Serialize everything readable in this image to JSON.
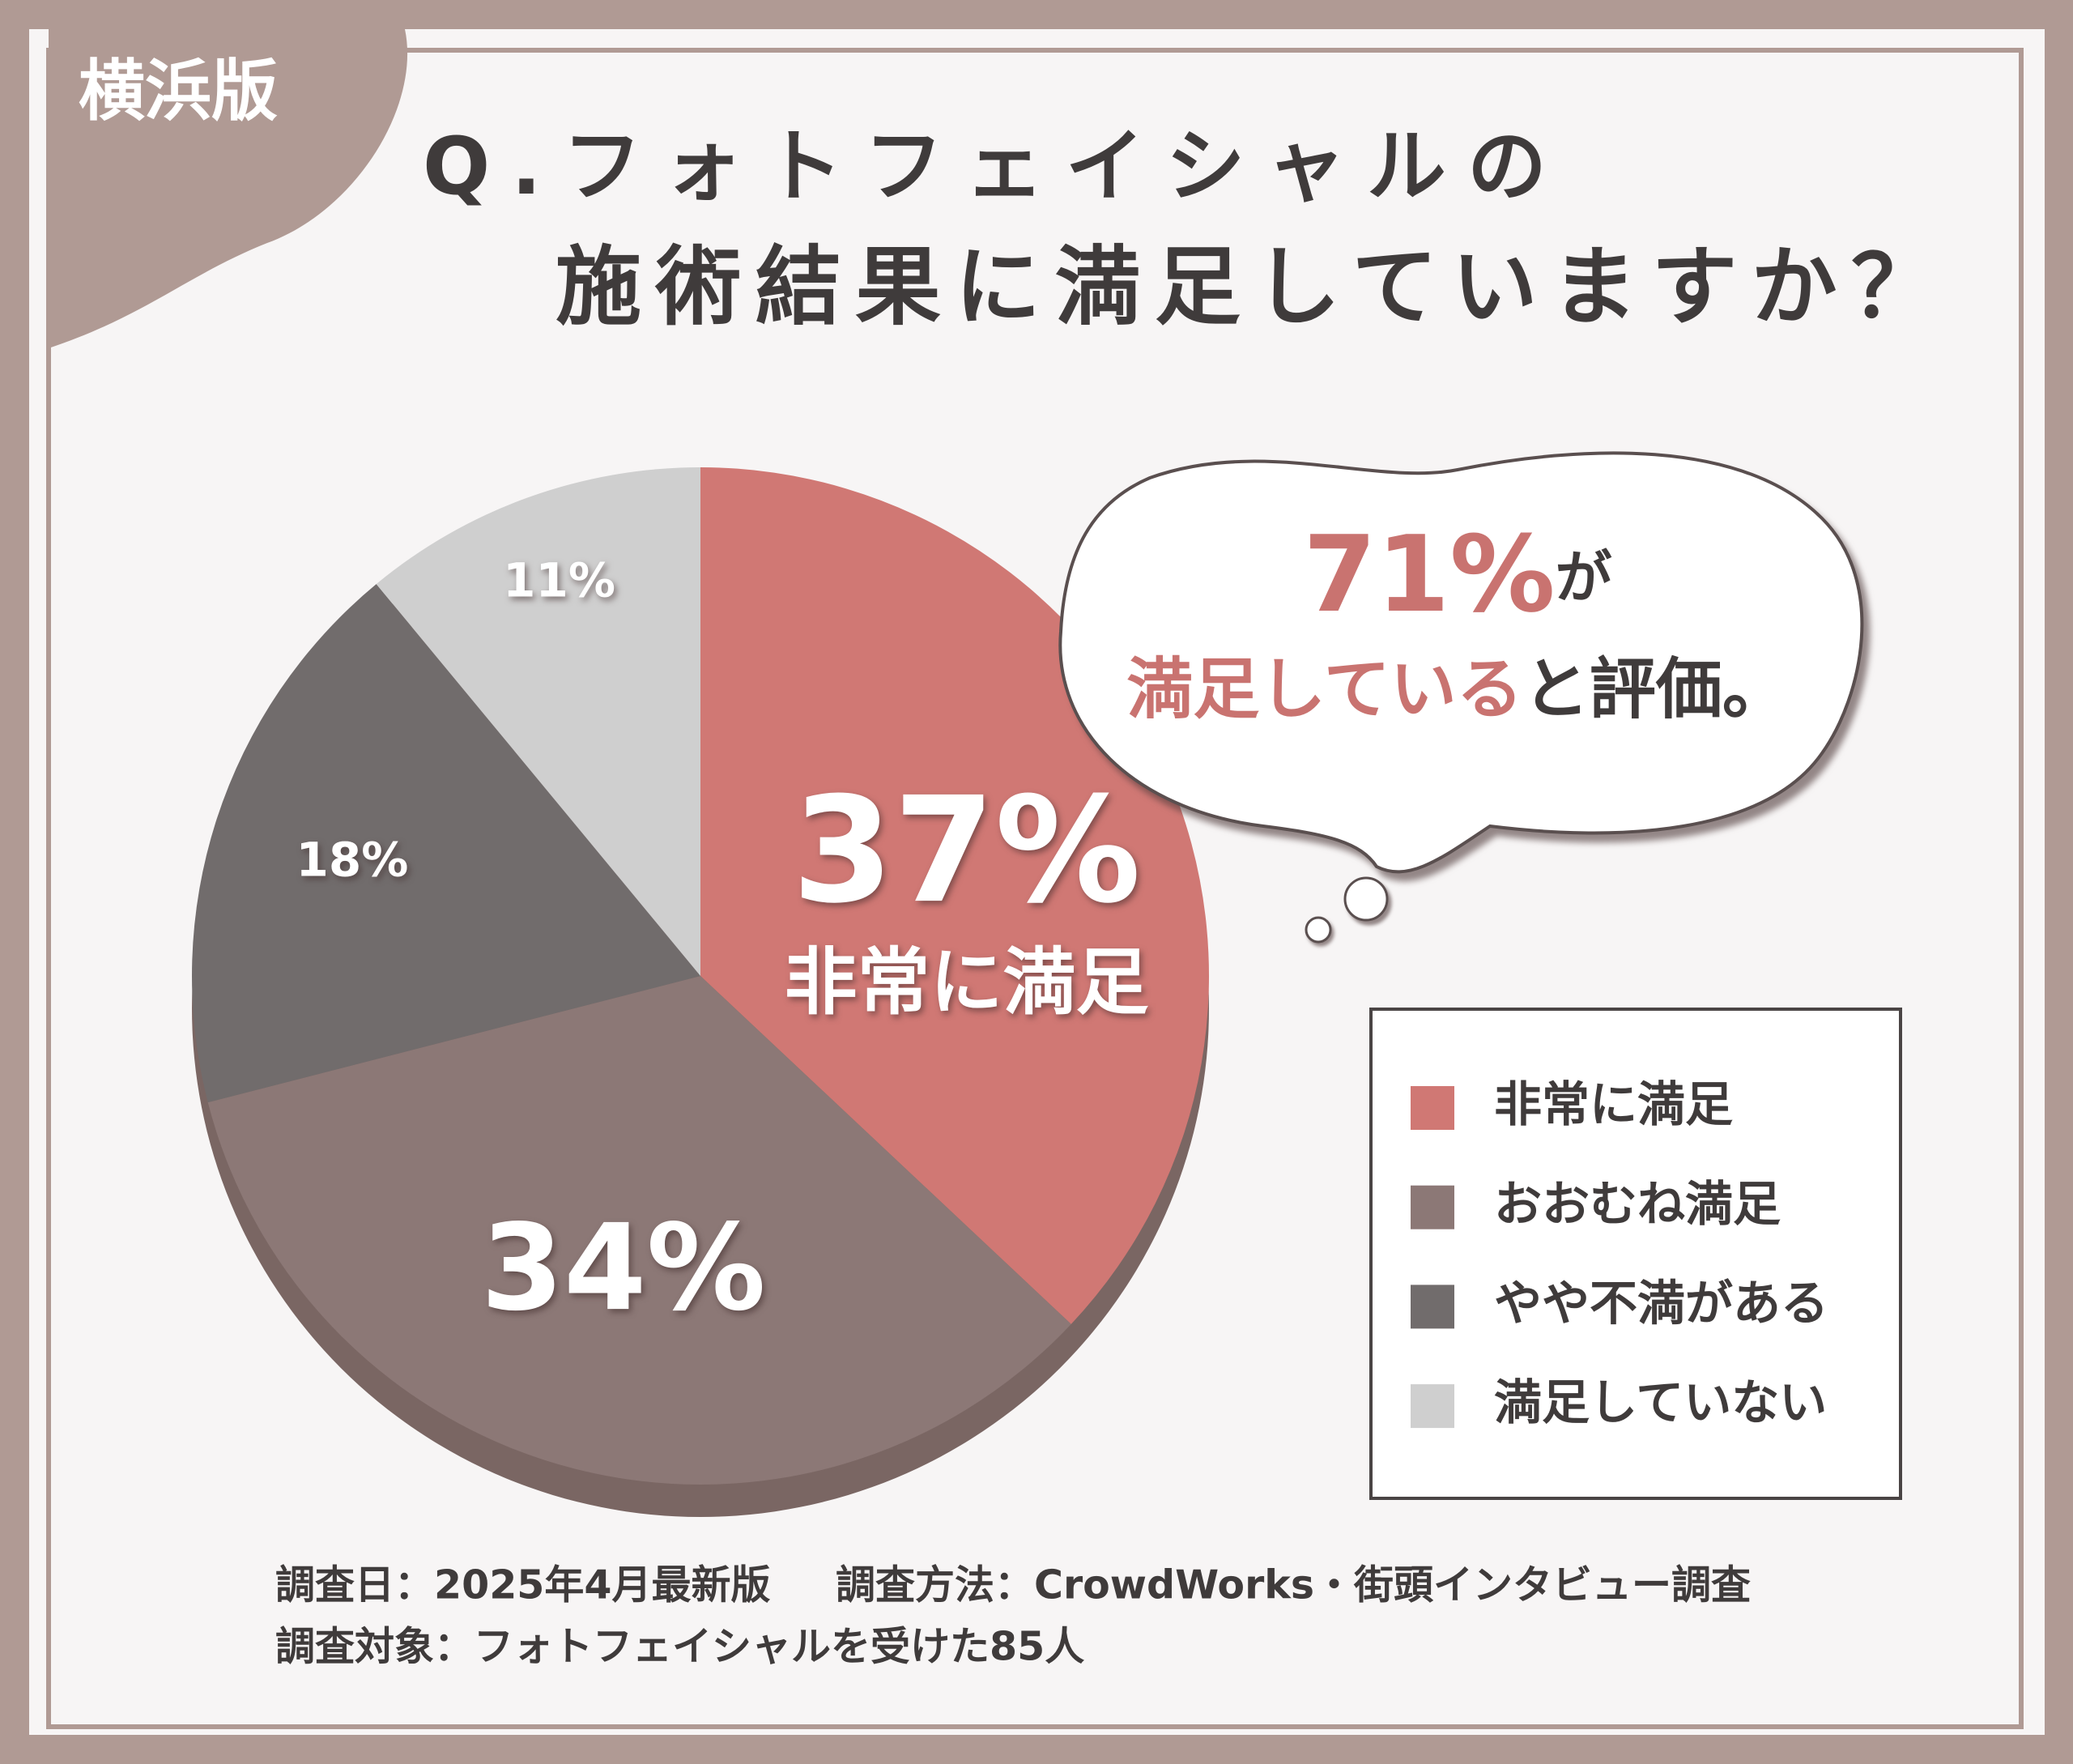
{
  "badge": "横浜版",
  "chart_data": {
    "type": "pie",
    "title": [
      "Q.フォトフェイシャルの",
      "施術結果に満足していますか？"
    ],
    "categories": [
      "非常に満足",
      "おおむね満足",
      "やや不満がある",
      "満足していない"
    ],
    "values": [
      37,
      34,
      18,
      11
    ],
    "value_labels": [
      "37%",
      "34%",
      "18%",
      "11%"
    ],
    "colors": [
      "#d07874",
      "#8c7876",
      "#716c6c",
      "#cfcfcf"
    ],
    "callout": [
      "71%",
      "が",
      "満足している",
      "と評価。"
    ],
    "notes": [
      "調査日：2025年4月最新版",
      "調査方法：CrowdWorks・街頭インタビュー調査",
      "調査対象：フォトフェイシャルを受けた85人"
    ]
  }
}
